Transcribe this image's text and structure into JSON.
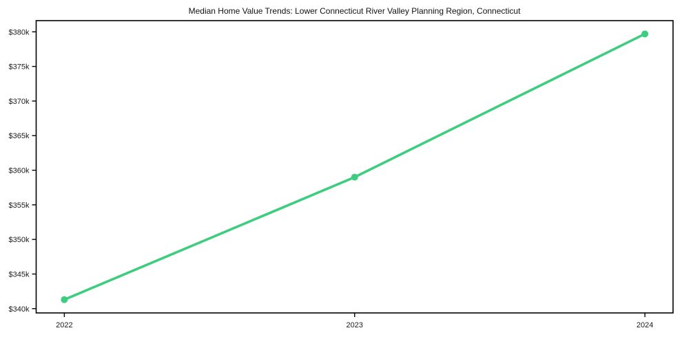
{
  "chart_data": {
    "type": "line",
    "title": "Median Home Value Trends: Lower Connecticut River Valley Planning Region, Connecticut",
    "xlabel": "",
    "ylabel": "",
    "x": [
      2022,
      2023,
      2024
    ],
    "x_tick_labels": [
      "2022",
      "2023",
      "2024"
    ],
    "series": [
      {
        "name": "Median Home Value",
        "values": [
          341300,
          359000,
          379700
        ]
      }
    ],
    "y_ticks": [
      340000,
      345000,
      350000,
      355000,
      360000,
      365000,
      370000,
      375000,
      380000
    ],
    "y_tick_labels": [
      "$340k",
      "$345k",
      "$350k",
      "$355k",
      "$360k",
      "$365k",
      "$370k",
      "$375k",
      "$380k"
    ],
    "xlim": [
      2021.903,
      2024.097
    ],
    "ylim": [
      339380,
      381620
    ],
    "grid": false,
    "legend": null,
    "line_color": "#3ecd7e",
    "marker": "circle",
    "frame_color": "#000000",
    "text_color": "#1a1a1a",
    "background_color": "#ffffff"
  }
}
